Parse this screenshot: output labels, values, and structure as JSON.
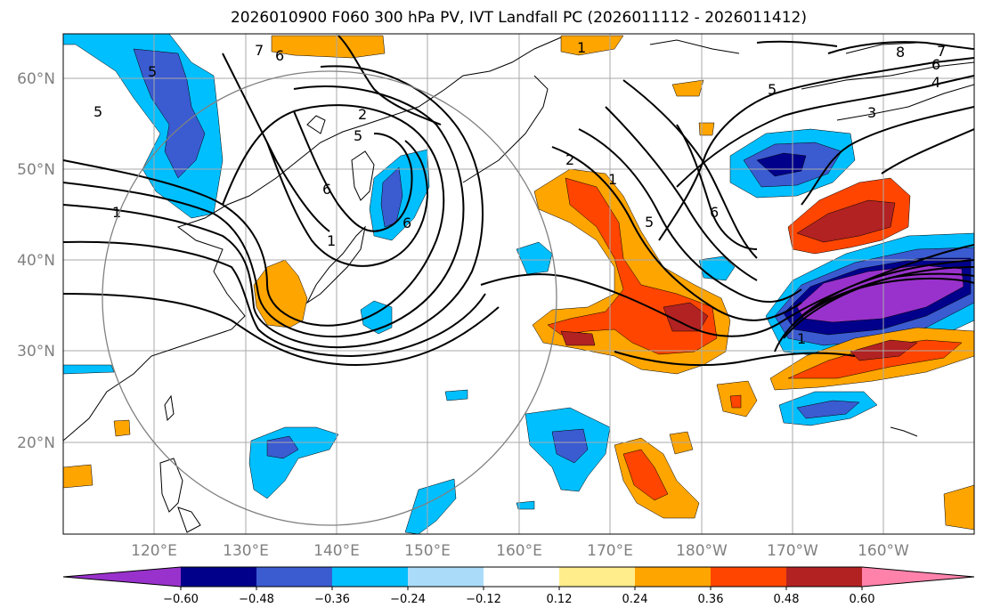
{
  "title": "2026010900 F060 300 hPa PV, IVT Landfall PC (2026011112 - 2026011412)",
  "map": {
    "lon_ticks": [
      "120°E",
      "130°E",
      "140°E",
      "150°E",
      "160°E",
      "170°E",
      "180°W",
      "170°W",
      "160°W"
    ],
    "lat_ticks": [
      "60°N",
      "50°N",
      "40°N",
      "30°N",
      "20°N"
    ],
    "contour_labels": [
      "5",
      "5",
      "1",
      "7",
      "6",
      "2",
      "5",
      "6",
      "1",
      "6",
      "7",
      "8",
      "6",
      "4",
      "3",
      "1",
      "5",
      "6",
      "2",
      "1",
      "5",
      "1"
    ]
  },
  "colorbar": {
    "colors": [
      "#9932cc",
      "#00008b",
      "#3b5bd1",
      "#00bfff",
      "#aadcfa",
      "#ffffff",
      "#ffec8b",
      "#ffa500",
      "#ff4500",
      "#b22222",
      "#ff82ab"
    ],
    "labels": [
      "−0.60",
      "−0.48",
      "−0.36",
      "−0.24",
      "−0.12",
      "0.12",
      "0.24",
      "0.36",
      "0.48",
      "0.60"
    ]
  }
}
